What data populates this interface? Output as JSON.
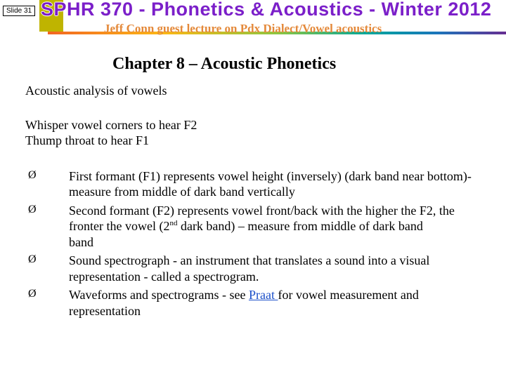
{
  "slideLabel": "Slide 31",
  "courseTitle": "SPHR 370 - Phonetics & Acoustics - Winter 2012",
  "subtitle": "Jeff Conn guest lecture on Pdx Dialect/Vowel acoustics",
  "chapter": "Chapter 8 – Acoustic Phonetics",
  "para1": "Acoustic analysis of vowels",
  "para2a": "Whisper vowel corners to hear F2",
  "para2b": "Thump throat to hear F1",
  "arrow": "Ø",
  "b1": "First formant (F1) represents vowel height (inversely) (dark band near bottom)- measure from middle of dark band vertically",
  "b2a": "Second formant (F2) represents vowel front/back with the higher the F2, the fronter the vowel (2",
  "b2sup": "nd",
  "b2b": " dark band) – measure from middle of dark band",
  "b2c": "band",
  "b3": "Sound spectrograph - an instrument that translates a sound into a visual representation - called a spectrogram.",
  "b4a": "Waveforms and spectrograms - see ",
  "b4link": "Praat ",
  "b4b": "for vowel measurement and representation",
  "colors": {
    "titlePurple": "#7b1fc9",
    "subtitleOrange": "#e4893a",
    "vertBar": "#bfb400",
    "link": "#1b4fc9"
  }
}
